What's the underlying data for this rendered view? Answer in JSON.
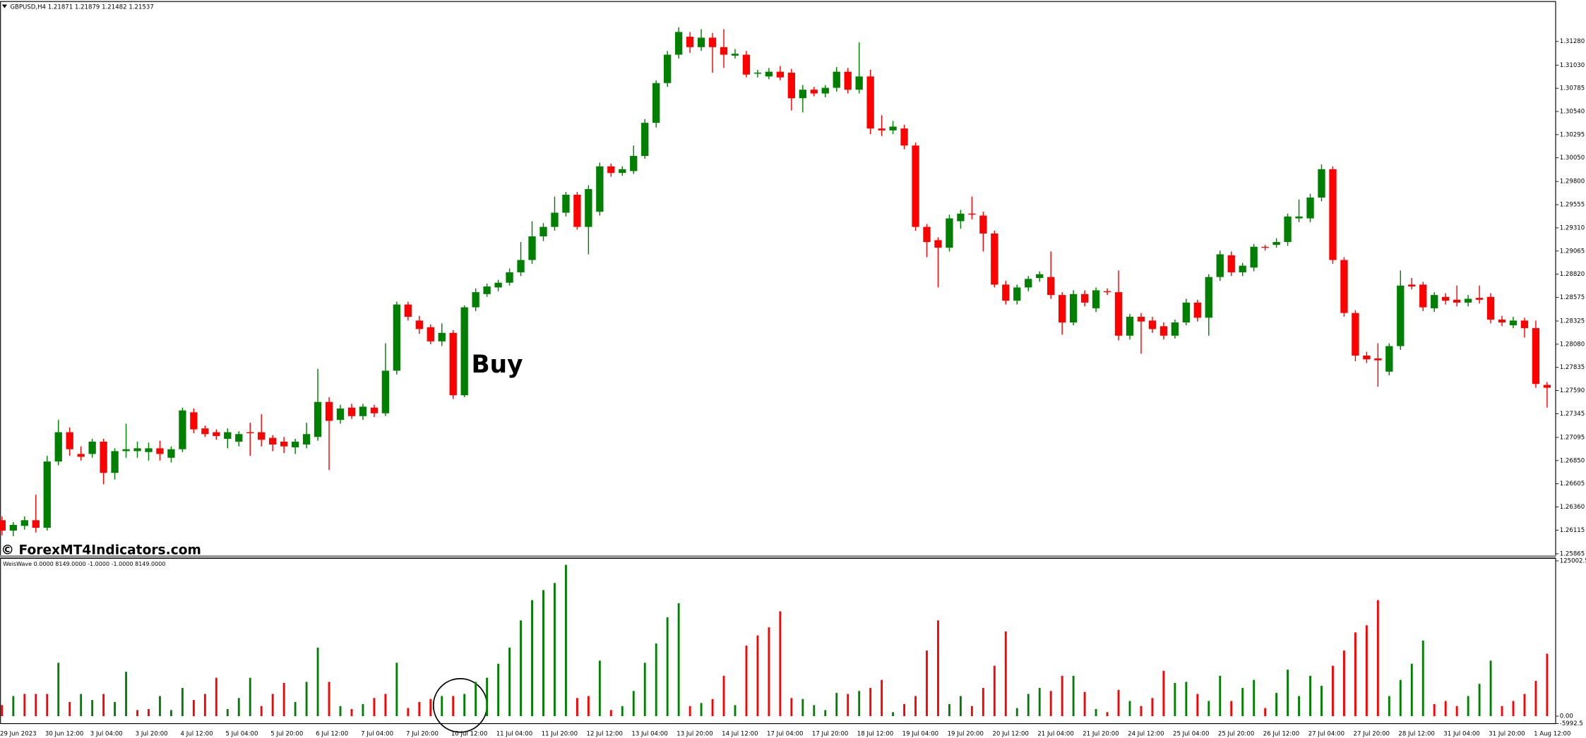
{
  "chart_data": [
    {
      "type": "candlestick",
      "title": "GBPUSD,H4  1.21871 1.21879 1.21482 1.21537",
      "annotation": "Buy",
      "watermark": "© ForexMT4Indicators.com",
      "up_color": "green",
      "down_color": "red",
      "categories": [
        "29 Jun 2023",
        null,
        null,
        null,
        "30 Jun 12:00",
        null,
        null,
        null,
        "3 Jul 04:00",
        null,
        null,
        null,
        "3 Jul 20:00",
        null,
        null,
        null,
        "4 Jul 12:00",
        null,
        null,
        null,
        "5 Jul 04:00",
        null,
        null,
        null,
        "5 Jul 20:00",
        null,
        null,
        null,
        "6 Jul 12:00",
        null,
        null,
        null,
        "7 Jul 04:00",
        null,
        null,
        null,
        "7 Jul 20:00",
        null,
        null,
        null,
        "10 Jul 12:00",
        null,
        null,
        null,
        "11 Jul 04:00",
        null,
        null,
        null,
        "11 Jul 20:00",
        null,
        null,
        null,
        "12 Jul 12:00",
        null,
        null,
        null,
        "13 Jul 04:00",
        null,
        null,
        null,
        "13 Jul 20:00",
        null,
        null,
        null,
        "14 Jul 12:00",
        null,
        null,
        null,
        "17 Jul 04:00",
        null,
        null,
        null,
        "17 Jul 20:00",
        null,
        null,
        null,
        "18 Jul 12:00",
        null,
        null,
        null,
        "19 Jul 04:00",
        null,
        null,
        null,
        "19 Jul 20:00",
        null,
        null,
        null,
        "20 Jul 12:00",
        null,
        null,
        null,
        "21 Jul 04:00",
        null,
        null,
        null,
        "21 Jul 20:00",
        null,
        null,
        null,
        "24 Jul 12:00",
        null,
        null,
        null,
        "25 Jul 04:00",
        null,
        null,
        null,
        "25 Jul 20:00",
        null,
        null,
        null,
        "26 Jul 12:00",
        null,
        null,
        null,
        "27 Jul 04:00",
        null,
        null,
        null,
        "27 Jul 20:00",
        null,
        null,
        null,
        "28 Jul 12:00",
        null,
        null,
        null,
        "31 Jul 04:00",
        null,
        null,
        null,
        "31 Jul 20:00",
        null,
        null,
        null,
        "1 Aug 12:00",
        null
      ],
      "open": [
        1.2622,
        1.2611,
        1.2616,
        1.2622,
        1.2614,
        1.2684,
        1.2715,
        1.2692,
        1.2692,
        1.2705,
        1.2672,
        1.2695,
        1.2695,
        1.2694,
        1.2698,
        1.2688,
        1.2697,
        1.2736,
        1.2719,
        1.2715,
        1.2708,
        1.2705,
        1.2715,
        1.2715,
        1.2709,
        1.2705,
        1.2699,
        1.2702,
        1.271,
        1.2747,
        1.2728,
        1.2741,
        1.2732,
        1.2741,
        1.2735,
        1.278,
        1.285,
        1.2833,
        1.2826,
        1.2811,
        1.282,
        1.2754,
        1.2847,
        1.2861,
        1.2868,
        1.2873,
        1.2884,
        1.2897,
        1.2922,
        1.2932,
        1.2947,
        1.2966,
        1.2932,
        1.2948,
        1.2996,
        1.2989,
        1.2991,
        1.3007,
        1.3042,
        1.3084,
        1.3114,
        1.3133,
        1.3122,
        1.3132,
        1.3122,
        1.3113,
        1.3114,
        1.3094,
        1.3091,
        1.3096,
        1.3095,
        1.3068,
        1.3077,
        1.3073,
        1.3079,
        1.3096,
        1.3077,
        1.3091,
        1.3036,
        1.3034,
        1.3036,
        1.3018,
        1.2932,
        1.2918,
        1.291,
        1.2938,
        1.2946,
        1.2944,
        1.2925,
        1.2871,
        1.2854,
        1.2868,
        1.2878,
        1.2879,
        1.286,
        1.2831,
        1.2861,
        1.2846,
        1.2864,
        1.2863,
        1.2817,
        1.2837,
        1.2833,
        1.2827,
        1.2817,
        1.2831,
        1.2852,
        1.2836,
        1.2879,
        1.2902,
        1.2884,
        1.2889,
        1.2911,
        1.2913,
        1.2916,
        1.2941,
        1.2941,
        1.2963,
        1.2993,
        1.2897,
        1.2841,
        1.2796,
        1.2793,
        1.2779,
        1.2806,
        1.2871,
        1.2871,
        1.2846,
        1.2858,
        1.2855,
        1.2852,
        1.2857,
        1.2858,
        1.2834,
        1.2828,
        1.2833,
        1.2825,
        1.2765
      ],
      "high": [
        1.2626,
        1.262,
        1.2626,
        1.2649,
        1.269,
        1.2728,
        1.272,
        1.27,
        1.2708,
        1.2708,
        1.2698,
        1.2724,
        1.2705,
        1.2704,
        1.2706,
        1.27,
        1.2741,
        1.274,
        1.2722,
        1.2718,
        1.2719,
        1.2716,
        1.2725,
        1.2734,
        1.2712,
        1.271,
        1.2708,
        1.2725,
        1.2782,
        1.2752,
        1.2744,
        1.2745,
        1.2745,
        1.2744,
        1.2809,
        1.2853,
        1.2853,
        1.2838,
        1.2829,
        1.283,
        1.2823,
        1.2849,
        1.2867,
        1.2872,
        1.2876,
        1.2888,
        1.2916,
        1.2938,
        1.2936,
        1.2964,
        1.2969,
        1.2969,
        1.2976,
        1.3,
        1.2999,
        1.2996,
        1.3018,
        1.3046,
        1.3087,
        1.3118,
        1.3143,
        1.3138,
        1.3141,
        1.3137,
        1.3141,
        1.312,
        1.3118,
        1.3098,
        1.31,
        1.3102,
        1.3099,
        1.3082,
        1.308,
        1.3082,
        1.3101,
        1.31,
        1.3127,
        1.3098,
        1.305,
        1.3044,
        1.304,
        1.3021,
        1.2935,
        1.2921,
        1.2945,
        1.295,
        1.2964,
        1.2948,
        1.2928,
        1.2875,
        1.2871,
        1.288,
        1.2885,
        1.2906,
        1.2863,
        1.2865,
        1.2865,
        1.2868,
        1.2867,
        1.2886,
        1.284,
        1.2841,
        1.2837,
        1.2831,
        1.2834,
        1.2856,
        1.2855,
        1.2882,
        1.2907,
        1.2906,
        1.2894,
        1.2914,
        1.2913,
        1.292,
        1.2946,
        1.2961,
        1.2967,
        1.2998,
        1.2996,
        1.29,
        1.2844,
        1.28,
        1.2809,
        1.2809,
        1.2886,
        1.2878,
        1.2874,
        1.2863,
        1.2862,
        1.287,
        1.286,
        1.287,
        1.2862,
        1.2838,
        1.2837,
        1.2836,
        1.2833,
        1.2768
      ],
      "low": [
        1.2606,
        1.2605,
        1.2612,
        1.2609,
        1.2611,
        1.268,
        1.269,
        1.2685,
        1.2688,
        1.266,
        1.2665,
        1.2688,
        1.2688,
        1.2685,
        1.2685,
        1.2683,
        1.2694,
        1.2714,
        1.271,
        1.2707,
        1.2698,
        1.27,
        1.269,
        1.27,
        1.2695,
        1.2693,
        1.2692,
        1.2698,
        1.2706,
        1.2675,
        1.2724,
        1.2729,
        1.2728,
        1.2731,
        1.2732,
        1.2776,
        1.2833,
        1.2819,
        1.2808,
        1.2806,
        1.275,
        1.2752,
        1.2843,
        1.2858,
        1.2864,
        1.287,
        1.288,
        1.2893,
        1.2917,
        1.2928,
        1.2943,
        1.2929,
        1.2903,
        1.2944,
        1.2985,
        1.2986,
        1.2988,
        1.3004,
        1.3037,
        1.308,
        1.311,
        1.3116,
        1.3118,
        1.3095,
        1.31,
        1.311,
        1.309,
        1.309,
        1.3088,
        1.3087,
        1.3055,
        1.3053,
        1.307,
        1.3069,
        1.3075,
        1.3073,
        1.3073,
        1.303,
        1.3028,
        1.303,
        1.3014,
        1.2928,
        1.29,
        1.2868,
        1.2906,
        1.293,
        1.294,
        1.2906,
        1.2868,
        1.285,
        1.285,
        1.2864,
        1.2874,
        1.2856,
        1.2818,
        1.2828,
        1.2848,
        1.2842,
        1.286,
        1.2812,
        1.2813,
        1.2798,
        1.282,
        1.2813,
        1.2814,
        1.2828,
        1.2832,
        1.2817,
        1.2875,
        1.288,
        1.288,
        1.2885,
        1.2907,
        1.291,
        1.2912,
        1.2937,
        1.2937,
        1.2959,
        1.2893,
        1.2837,
        1.279,
        1.2788,
        1.2763,
        1.2775,
        1.2802,
        1.2866,
        1.2843,
        1.2842,
        1.285,
        1.2848,
        1.2848,
        1.2851,
        1.283,
        1.2827,
        1.2825,
        1.2815,
        1.2762,
        1.2741
      ],
      "close": [
        1.2611,
        1.2617,
        1.2622,
        1.2614,
        1.2684,
        1.2715,
        1.2697,
        1.2689,
        1.2705,
        1.2672,
        1.2695,
        1.2697,
        1.2698,
        1.2698,
        1.2692,
        1.2697,
        1.2738,
        1.2718,
        1.2713,
        1.2711,
        1.2715,
        1.2713,
        1.2714,
        1.2707,
        1.2702,
        1.27,
        1.2705,
        1.2713,
        1.2747,
        1.2727,
        1.274,
        1.2732,
        1.2742,
        1.2735,
        1.278,
        1.285,
        1.2837,
        1.2824,
        1.2811,
        1.282,
        1.2754,
        1.2847,
        1.2863,
        1.2869,
        1.2873,
        1.2884,
        1.2897,
        1.2922,
        1.2932,
        1.2947,
        1.2966,
        1.2932,
        1.2972,
        1.2996,
        1.2989,
        1.2993,
        1.3007,
        1.3042,
        1.3084,
        1.3114,
        1.3138,
        1.3122,
        1.3132,
        1.3122,
        1.3114,
        1.3115,
        1.3093,
        1.3095,
        1.3096,
        1.309,
        1.3068,
        1.3077,
        1.3073,
        1.3079,
        1.3096,
        1.3077,
        1.3091,
        1.3036,
        1.3034,
        1.3038,
        1.3018,
        1.2932,
        1.2916,
        1.291,
        1.2941,
        1.2946,
        1.2945,
        1.2925,
        1.2871,
        1.2854,
        1.2868,
        1.2877,
        1.2882,
        1.286,
        1.2831,
        1.2861,
        1.2852,
        1.2865,
        1.2863,
        1.2817,
        1.2837,
        1.2832,
        1.2824,
        1.2817,
        1.2831,
        1.2852,
        1.2836,
        1.2879,
        1.2903,
        1.2884,
        1.2891,
        1.2911,
        1.291,
        1.2916,
        1.2943,
        1.2943,
        1.2963,
        1.2993,
        1.2897,
        1.2841,
        1.2796,
        1.2792,
        1.2791,
        1.2806,
        1.287,
        1.2869,
        1.2847,
        1.286,
        1.2854,
        1.2852,
        1.2856,
        1.2855,
        1.2834,
        1.2831,
        1.2833,
        1.2825,
        1.2766,
        1.2762
      ],
      "ylim": [
        1.2584,
        1.317
      ],
      "yticks": [
        {
          "value": 1.3128,
          "label": "1.31280"
        },
        {
          "value": 1.3103,
          "label": "1.31030"
        },
        1.30785,
        {
          "value": 1.3054,
          "label": "1.30540"
        },
        1.30295,
        {
          "value": 1.3005,
          "label": "1.30050"
        },
        {
          "value": 1.298,
          "label": "1.29800"
        },
        1.29555,
        {
          "value": 1.2931,
          "label": "1.29310"
        },
        1.29065,
        {
          "value": 1.2882,
          "label": "1.28820"
        },
        1.28575,
        1.28325,
        {
          "value": 1.2808,
          "label": "1.28080"
        },
        1.27835,
        {
          "value": 1.2759,
          "label": "1.27590"
        },
        1.27345,
        1.27095,
        {
          "value": 1.2685,
          "label": "1.26850"
        },
        1.26605,
        {
          "value": 1.2636,
          "label": "1.26360"
        },
        1.26115,
        1.25865
      ]
    },
    {
      "type": "bar",
      "title": "WeisWave 0.0000 8149.0000 -1.0000 -1.0000 8149.0000",
      "values": [
        8900,
        16200,
        17900,
        17900,
        17900,
        43000,
        11400,
        17900,
        13000,
        17900,
        11400,
        35700,
        4900,
        5700,
        16200,
        4900,
        22700,
        13000,
        17900,
        30900,
        5700,
        14600,
        30900,
        8100,
        17900,
        26800,
        11400,
        27600,
        55200,
        27600,
        8100,
        5700,
        9700,
        14600,
        17900,
        43000,
        6500,
        11400,
        13800,
        16200,
        16200,
        17900,
        27600,
        30900,
        42200,
        55200,
        77100,
        93400,
        101500,
        107200,
        121800,
        14600,
        16200,
        44700,
        4900,
        8100,
        20300,
        43000,
        58500,
        79600,
        90900,
        8100,
        10600,
        13800,
        32500,
        8900,
        56800,
        65000,
        71500,
        84400,
        14600,
        13800,
        8900,
        4900,
        18700,
        17900,
        20300,
        22700,
        29200,
        3200,
        9700,
        16200,
        52800,
        77100,
        9700,
        16200,
        8100,
        22700,
        40600,
        68200,
        6500,
        17900,
        22700,
        20300,
        32500,
        32500,
        19500,
        5700,
        3200,
        21100,
        12200,
        8100,
        14600,
        36500,
        26800,
        27600,
        17900,
        12200,
        32500,
        12200,
        22700,
        29200,
        6500,
        18700,
        37400,
        16200,
        32500,
        24400,
        40600,
        52800,
        67400,
        73100,
        93400,
        16200,
        29200,
        42200,
        60900,
        9700,
        12200,
        8100,
        16200,
        26000,
        44700,
        8100,
        12200,
        17900,
        28400,
        50300
      ],
      "colors": [
        "red",
        "green",
        "red",
        "red",
        "red",
        "green",
        "red",
        "green",
        "green",
        "red",
        "green",
        "green",
        "red",
        "red",
        "green",
        "green",
        "green",
        "red",
        "red",
        "red",
        "green",
        "green",
        "green",
        "red",
        "red",
        "red",
        "green",
        "green",
        "green",
        "red",
        "green",
        "red",
        "green",
        "red",
        "red",
        "green",
        "red",
        "red",
        "red",
        "green",
        "red",
        "green",
        "green",
        "green",
        "green",
        "green",
        "green",
        "green",
        "green",
        "green",
        "green",
        "red",
        "red",
        "green",
        "red",
        "green",
        "green",
        "green",
        "green",
        "green",
        "green",
        "red",
        "green",
        "red",
        "red",
        "green",
        "red",
        "red",
        "red",
        "red",
        "red",
        "green",
        "green",
        "green",
        "green",
        "red",
        "green",
        "red",
        "red",
        "green",
        "red",
        "red",
        "red",
        "red",
        "green",
        "green",
        "red",
        "red",
        "red",
        "red",
        "green",
        "green",
        "green",
        "red",
        "red",
        "green",
        "red",
        "green",
        "red",
        "red",
        "green",
        "red",
        "red",
        "red",
        "green",
        "green",
        "red",
        "green",
        "green",
        "red",
        "green",
        "green",
        "red",
        "green",
        "green",
        "green",
        "green",
        "green",
        "red",
        "red",
        "red",
        "red",
        "red",
        "green",
        "green",
        "green",
        "green",
        "red",
        "red",
        "red",
        "green",
        "green",
        "green",
        "red",
        "red",
        "red",
        "red",
        "red"
      ],
      "ylim": [
        -5992.5,
        125002.5
      ],
      "yticks": [
        125002.5,
        {
          "value": 0,
          "label": "0.00"
        },
        -5992.5
      ]
    }
  ]
}
